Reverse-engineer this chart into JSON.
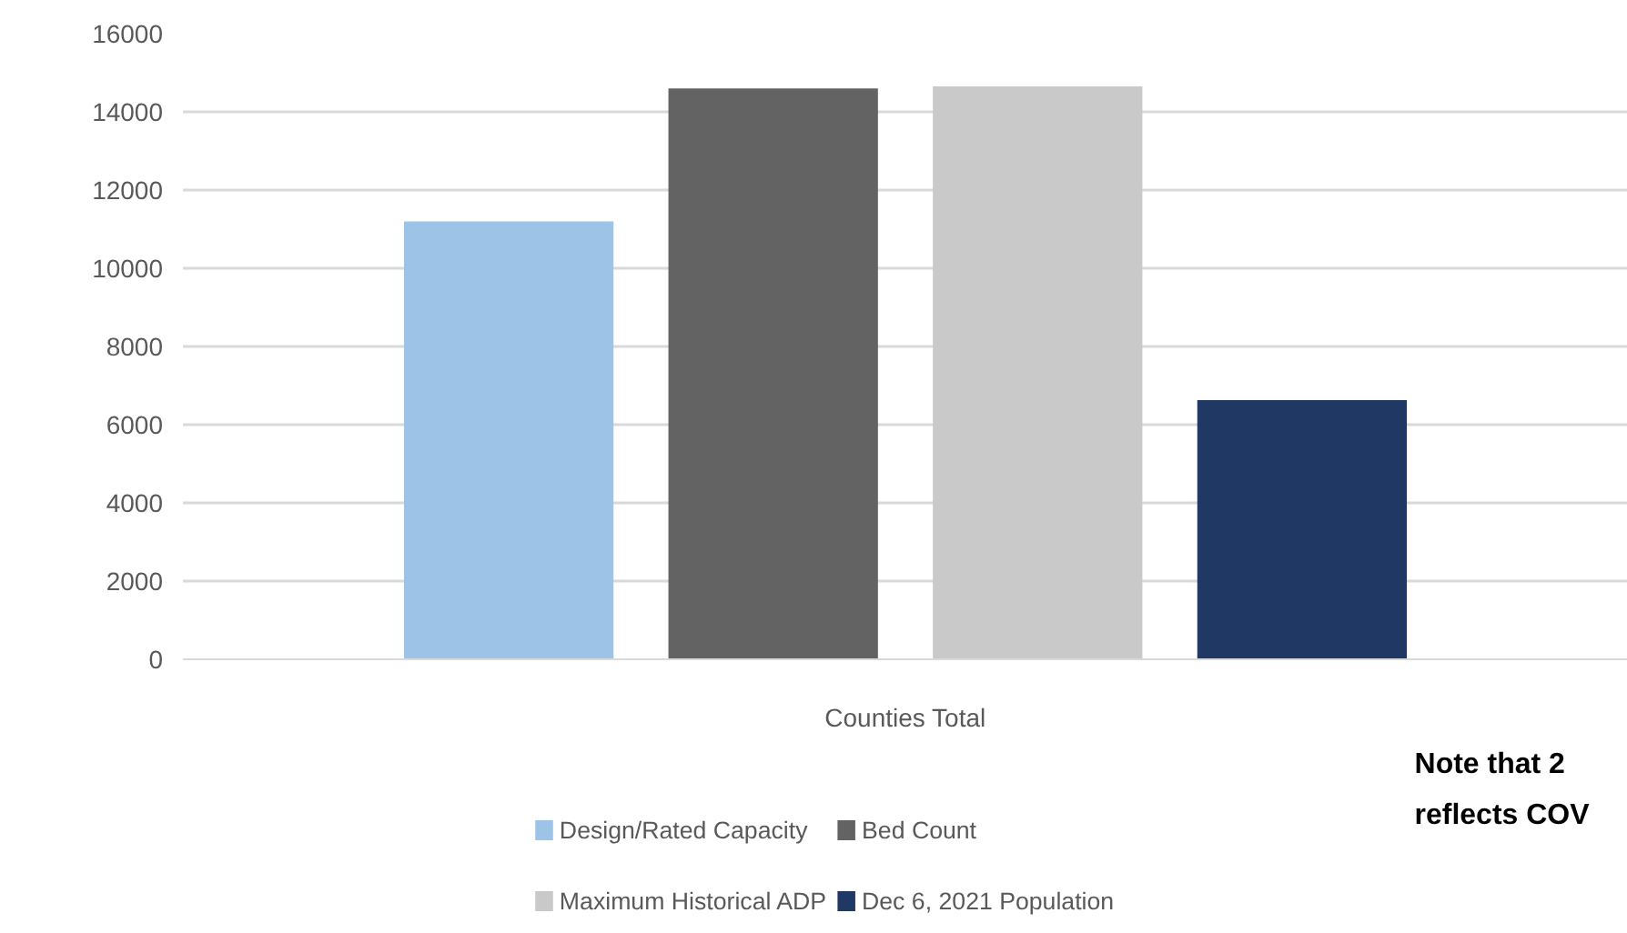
{
  "chart_data": {
    "type": "bar",
    "categories": [
      "Counties Total"
    ],
    "series": [
      {
        "name": "Design/Rated Capacity",
        "color": "#9dc3e6",
        "values": [
          11200
        ]
      },
      {
        "name": "Bed Count",
        "color": "#636363",
        "values": [
          14600
        ]
      },
      {
        "name": "Maximum Historical ADP",
        "color": "#c9c9c9",
        "values": [
          14650
        ]
      },
      {
        "name": "Dec 6, 2021 Population",
        "color": "#203864",
        "values": [
          6630
        ]
      }
    ],
    "ylim": [
      0,
      16000
    ],
    "yticks": [
      0,
      2000,
      4000,
      6000,
      8000,
      10000,
      12000,
      14000,
      16000
    ],
    "grid": "y",
    "legend": "bottom",
    "annotations": [
      "Note that 2",
      "reflects COV"
    ]
  }
}
